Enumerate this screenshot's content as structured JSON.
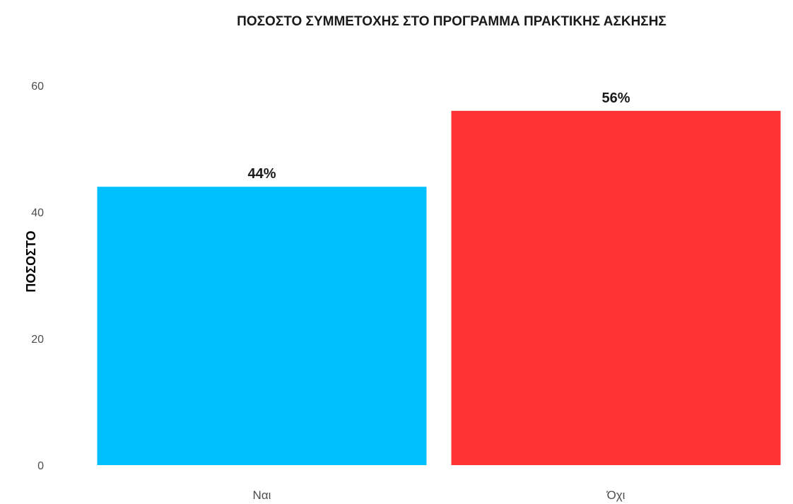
{
  "chart_data": {
    "type": "bar",
    "title": "ΠΟΣΟΣΤΟ ΣΥΜΜΕΤΟΧΗΣ ΣΤΟ ΠΡΟΓΡΑΜΜΑ ΠΡΑΚΤΙΚΗΣ ΑΣΚΗΣΗΣ",
    "xlabel": "",
    "ylabel": "ΠΟΣΟΣΤΟ",
    "categories": [
      "Ναι",
      "Όχι"
    ],
    "values": [
      44,
      56
    ],
    "data_labels": [
      "44%",
      "56%"
    ],
    "colors": [
      "#00BFFF",
      "#FF3333"
    ],
    "ylim": [
      0,
      60
    ],
    "yticks": [
      0,
      20,
      40,
      60
    ],
    "ytick_labels": [
      "0",
      "20",
      "40",
      "60"
    ],
    "grid": false,
    "legend": "none"
  }
}
